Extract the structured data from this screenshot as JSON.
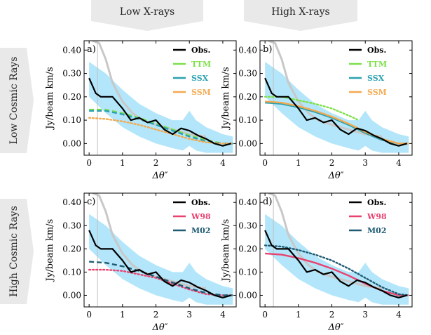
{
  "column_labels": [
    "Low X-rays",
    "High X-rays"
  ],
  "row_labels": [
    "Low Cosmic Rays",
    "High Cosmic Rays"
  ],
  "colors": {
    "obs": "#000000",
    "band": "#b3e6fa",
    "model_gray": "#c8c8c8",
    "TTM": "#7ee04a",
    "SSX": "#2aa1b0",
    "SSM": "#f4a950",
    "W98": "#e8436f",
    "M02": "#1f5b73",
    "banner": "#e9e9e9"
  },
  "chart_data": [
    {
      "panel": "a)",
      "type": "line",
      "xlabel": "Δθ″",
      "ylabel": "Jy/beam km/s",
      "xlim": [
        -0.15,
        4.4
      ],
      "ylim": [
        -0.05,
        0.44
      ],
      "xticks": [
        "0",
        "1",
        "2",
        "3",
        "4"
      ],
      "yticks": [
        "0.00",
        "0.10",
        "0.20",
        "0.30",
        "0.40"
      ],
      "legend": [
        "Obs.",
        "TTM",
        "SSX",
        "SSM"
      ],
      "series": [
        {
          "name": "Obs.",
          "style": "solid",
          "x": [
            0,
            0.2,
            0.35,
            0.7,
            1.0,
            1.25,
            1.5,
            1.75,
            2.0,
            2.25,
            2.5,
            2.75,
            3.0,
            3.25,
            3.5,
            3.75,
            4.0,
            4.25
          ],
          "y": [
            0.28,
            0.215,
            0.2,
            0.2,
            0.15,
            0.1,
            0.11,
            0.09,
            0.1,
            0.06,
            0.04,
            0.065,
            0.055,
            0.035,
            0.02,
            0.0,
            -0.01,
            0.0
          ]
        },
        {
          "name": "TTM",
          "style": "dashed",
          "x": [
            0,
            0.5,
            1,
            1.5,
            2,
            2.5,
            3,
            3.5,
            4,
            4.3
          ],
          "y": [
            0.145,
            0.145,
            0.13,
            0.11,
            0.085,
            0.06,
            0.035,
            0.015,
            0.0,
            0.0
          ]
        },
        {
          "name": "SSX",
          "style": "dashed",
          "x": [
            0,
            0.5,
            1,
            1.5,
            2,
            2.5,
            3,
            3.5,
            4,
            4.3
          ],
          "y": [
            0.14,
            0.14,
            0.125,
            0.105,
            0.08,
            0.055,
            0.03,
            0.01,
            0.0,
            0.0
          ]
        },
        {
          "name": "SSM",
          "style": "dotted",
          "x": [
            0,
            0.5,
            1,
            1.5,
            2,
            2.5,
            3,
            3.5,
            4,
            4.3
          ],
          "y": [
            0.11,
            0.105,
            0.095,
            0.08,
            0.06,
            0.04,
            0.02,
            0.005,
            0.0,
            0.0
          ]
        }
      ]
    },
    {
      "panel": "b)",
      "type": "line",
      "xlabel": "Δθ″",
      "ylabel": "Jy/beam km/s",
      "xlim": [
        -0.15,
        4.4
      ],
      "ylim": [
        -0.05,
        0.44
      ],
      "xticks": [
        "0",
        "1",
        "2",
        "3",
        "4"
      ],
      "yticks": [
        "0.00",
        "0.10",
        "0.20",
        "0.30",
        "0.40"
      ],
      "legend": [
        "Obs.",
        "TTM",
        "SSX",
        "SSM"
      ],
      "series": [
        {
          "name": "Obs.",
          "style": "solid",
          "x": [
            0,
            0.2,
            0.35,
            0.7,
            1.0,
            1.25,
            1.5,
            1.75,
            2.0,
            2.25,
            2.5,
            2.75,
            3.0,
            3.25,
            3.5,
            3.75,
            4.0,
            4.25
          ],
          "y": [
            0.28,
            0.215,
            0.2,
            0.2,
            0.15,
            0.1,
            0.11,
            0.09,
            0.1,
            0.06,
            0.04,
            0.065,
            0.055,
            0.035,
            0.02,
            0.0,
            -0.01,
            0.0
          ]
        },
        {
          "name": "TTM",
          "style": "dotted",
          "x": [
            0,
            0.5,
            1,
            1.5,
            2,
            2.5,
            2.8
          ],
          "y": [
            0.2,
            0.2,
            0.185,
            0.17,
            0.15,
            0.12,
            0.1
          ]
        },
        {
          "name": "SSX",
          "style": "solid",
          "x": [
            0,
            0.5,
            1,
            1.5,
            2,
            2.5,
            3,
            3.5,
            4,
            4.3
          ],
          "y": [
            0.175,
            0.17,
            0.155,
            0.135,
            0.11,
            0.08,
            0.045,
            0.015,
            0.0,
            0.0
          ]
        },
        {
          "name": "SSM",
          "style": "solid",
          "x": [
            0,
            0.5,
            1,
            1.5,
            2,
            2.5,
            3,
            3.5,
            4,
            4.3
          ],
          "y": [
            0.18,
            0.175,
            0.16,
            0.14,
            0.115,
            0.085,
            0.05,
            0.02,
            0.0,
            0.0
          ]
        }
      ]
    },
    {
      "panel": "c)",
      "type": "line",
      "xlabel": "Δθ″",
      "ylabel": "Jy/beam km/s",
      "xlim": [
        -0.15,
        4.4
      ],
      "ylim": [
        -0.05,
        0.44
      ],
      "xticks": [
        "0",
        "1",
        "2",
        "3",
        "4"
      ],
      "yticks": [
        "0.00",
        "0.10",
        "0.20",
        "0.30",
        "0.40"
      ],
      "legend": [
        "Obs.",
        "W98",
        "M02"
      ],
      "series": [
        {
          "name": "Obs.",
          "style": "solid",
          "x": [
            0,
            0.2,
            0.35,
            0.7,
            1.0,
            1.25,
            1.5,
            1.75,
            2.0,
            2.25,
            2.5,
            2.75,
            3.0,
            3.25,
            3.5,
            3.75,
            4.0,
            4.25
          ],
          "y": [
            0.28,
            0.215,
            0.2,
            0.2,
            0.15,
            0.1,
            0.11,
            0.09,
            0.1,
            0.06,
            0.04,
            0.065,
            0.055,
            0.035,
            0.02,
            0.0,
            -0.01,
            0.0
          ]
        },
        {
          "name": "W98",
          "style": "dotted",
          "x": [
            0,
            0.5,
            1,
            1.5,
            2,
            2.5,
            3,
            3.5,
            4,
            4.3
          ],
          "y": [
            0.11,
            0.11,
            0.105,
            0.09,
            0.075,
            0.05,
            0.025,
            0.005,
            0.0,
            0.0
          ]
        },
        {
          "name": "M02",
          "style": "dashed",
          "x": [
            0,
            0.5,
            1,
            1.5,
            2,
            2.5,
            3,
            3.5,
            4,
            4.3
          ],
          "y": [
            0.145,
            0.14,
            0.125,
            0.105,
            0.08,
            0.055,
            0.03,
            0.01,
            0.0,
            0.0
          ]
        }
      ]
    },
    {
      "panel": "d)",
      "type": "line",
      "xlabel": "Δθ″",
      "ylabel": "Jy/beam km/s",
      "xlim": [
        -0.15,
        4.4
      ],
      "ylim": [
        -0.05,
        0.44
      ],
      "xticks": [
        "0",
        "1",
        "2",
        "3",
        "4"
      ],
      "yticks": [
        "0.00",
        "0.10",
        "0.20",
        "0.30",
        "0.40"
      ],
      "legend": [
        "Obs.",
        "W98",
        "M02"
      ],
      "series": [
        {
          "name": "Obs.",
          "style": "solid",
          "x": [
            0,
            0.2,
            0.35,
            0.7,
            1.0,
            1.25,
            1.5,
            1.75,
            2.0,
            2.25,
            2.5,
            2.75,
            3.0,
            3.25,
            3.5,
            3.75,
            4.0,
            4.25
          ],
          "y": [
            0.28,
            0.215,
            0.2,
            0.2,
            0.15,
            0.1,
            0.11,
            0.09,
            0.1,
            0.06,
            0.04,
            0.065,
            0.055,
            0.035,
            0.02,
            0.0,
            -0.01,
            0.0
          ]
        },
        {
          "name": "W98",
          "style": "solid",
          "x": [
            0,
            0.5,
            1,
            1.5,
            2,
            2.5,
            3,
            3.5,
            4,
            4.3
          ],
          "y": [
            0.18,
            0.175,
            0.16,
            0.14,
            0.115,
            0.085,
            0.05,
            0.02,
            0.0,
            0.0
          ]
        },
        {
          "name": "M02",
          "style": "dotted",
          "x": [
            0,
            0.5,
            1,
            1.5,
            2,
            2.5,
            3,
            3.5,
            4,
            4.3
          ],
          "y": [
            0.215,
            0.21,
            0.195,
            0.175,
            0.15,
            0.115,
            0.075,
            0.035,
            0.005,
            0.0
          ]
        }
      ]
    }
  ],
  "background_reference": {
    "uncertainty_band": {
      "x": [
        0,
        0.5,
        1,
        1.5,
        2,
        2.5,
        2.8,
        3.0,
        3.2,
        3.5,
        4,
        4.3
      ],
      "lower": [
        0.2,
        0.13,
        0.07,
        0.03,
        0.0,
        -0.02,
        -0.03,
        -0.01,
        -0.03,
        -0.04,
        -0.04,
        -0.04
      ],
      "upper": [
        0.35,
        0.3,
        0.23,
        0.17,
        0.13,
        0.1,
        0.1,
        0.14,
        0.1,
        0.07,
        0.04,
        0.03
      ]
    },
    "gray_curve": {
      "x": [
        0.1,
        0.3,
        0.5,
        0.7,
        1.0,
        1.3,
        1.6,
        2.0,
        2.5,
        3.0,
        3.5
      ],
      "y": [
        0.44,
        0.43,
        0.36,
        0.26,
        0.18,
        0.13,
        0.1,
        0.08,
        0.06,
        0.04,
        0.03
      ]
    },
    "vertical_marker_x": 0.25
  }
}
